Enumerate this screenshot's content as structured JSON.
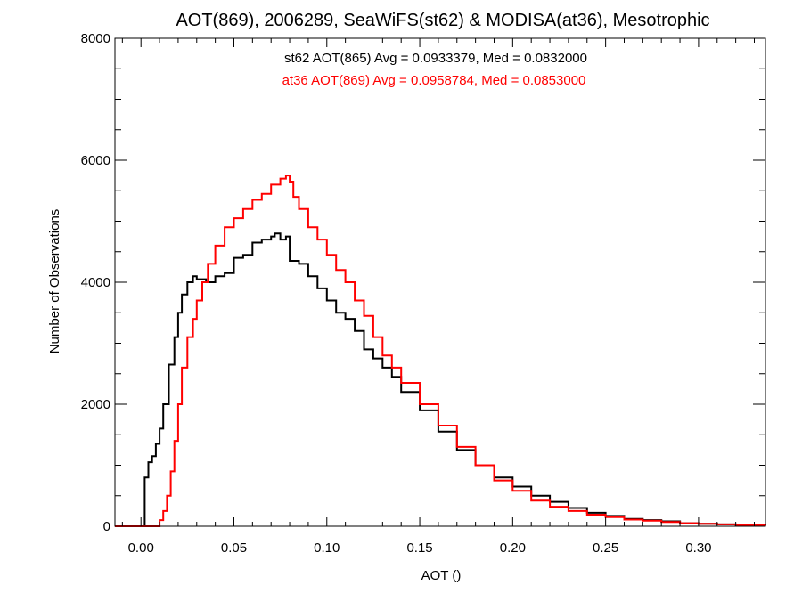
{
  "chart_data": {
    "type": "line",
    "title": "AOT(869), 2006289, SeaWiFS(st62) & MODISA(at36), Mesotrophic",
    "xlabel": "AOT ()",
    "ylabel": "Number of Observations",
    "xlim": [
      -0.014,
      0.336
    ],
    "ylim": [
      0,
      8000
    ],
    "x_ticks": [
      0.0,
      0.05,
      0.1,
      0.15,
      0.2,
      0.25,
      0.3
    ],
    "x_tick_labels": [
      "0.00",
      "0.05",
      "0.10",
      "0.15",
      "0.20",
      "0.25",
      "0.30"
    ],
    "y_ticks": [
      0,
      2000,
      4000,
      6000,
      8000
    ],
    "y_tick_labels": [
      "0",
      "2000",
      "4000",
      "6000",
      "8000"
    ],
    "grid": false,
    "step": true,
    "annotations": [
      {
        "text": "st62 AOT(865) Avg = 0.0933379, Med = 0.0832000",
        "color": "#000000"
      },
      {
        "text": "at36 AOT(869) Avg = 0.0958784, Med = 0.0853000",
        "color": "#ff0000"
      }
    ],
    "series": [
      {
        "color": "#000000",
        "x": [
          -0.014,
          0.0,
          0.002,
          0.004,
          0.006,
          0.008,
          0.01,
          0.012,
          0.015,
          0.018,
          0.02,
          0.022,
          0.025,
          0.028,
          0.03,
          0.035,
          0.04,
          0.045,
          0.05,
          0.055,
          0.06,
          0.065,
          0.07,
          0.072,
          0.075,
          0.078,
          0.08,
          0.085,
          0.09,
          0.095,
          0.1,
          0.105,
          0.11,
          0.115,
          0.12,
          0.125,
          0.13,
          0.135,
          0.14,
          0.15,
          0.16,
          0.17,
          0.18,
          0.19,
          0.2,
          0.21,
          0.22,
          0.23,
          0.24,
          0.25,
          0.26,
          0.27,
          0.28,
          0.29,
          0.3,
          0.31,
          0.32,
          0.336
        ],
        "y": [
          0,
          0,
          800,
          1050,
          1150,
          1350,
          1600,
          2000,
          2650,
          3100,
          3500,
          3800,
          4000,
          4100,
          4050,
          4000,
          4100,
          4150,
          4400,
          4450,
          4650,
          4700,
          4750,
          4800,
          4700,
          4750,
          4350,
          4300,
          4100,
          3900,
          3700,
          3500,
          3400,
          3200,
          2900,
          2750,
          2600,
          2450,
          2200,
          1900,
          1550,
          1250,
          1000,
          800,
          650,
          500,
          400,
          300,
          220,
          170,
          120,
          100,
          80,
          50,
          40,
          30,
          20,
          10
        ]
      },
      {
        "color": "#ff0000",
        "x": [
          -0.014,
          0.008,
          0.01,
          0.012,
          0.014,
          0.016,
          0.018,
          0.02,
          0.022,
          0.025,
          0.028,
          0.03,
          0.033,
          0.036,
          0.04,
          0.045,
          0.05,
          0.055,
          0.06,
          0.065,
          0.07,
          0.075,
          0.078,
          0.08,
          0.082,
          0.085,
          0.09,
          0.095,
          0.1,
          0.105,
          0.11,
          0.115,
          0.12,
          0.125,
          0.13,
          0.135,
          0.14,
          0.15,
          0.16,
          0.17,
          0.18,
          0.19,
          0.2,
          0.21,
          0.22,
          0.23,
          0.24,
          0.25,
          0.26,
          0.27,
          0.28,
          0.29,
          0.3,
          0.31,
          0.32,
          0.336
        ],
        "y": [
          0,
          0,
          100,
          250,
          500,
          900,
          1400,
          2000,
          2600,
          3100,
          3400,
          3700,
          4000,
          4300,
          4600,
          4900,
          5050,
          5200,
          5350,
          5450,
          5600,
          5700,
          5750,
          5650,
          5400,
          5200,
          4900,
          4700,
          4450,
          4200,
          4000,
          3700,
          3450,
          3100,
          2800,
          2600,
          2350,
          2000,
          1650,
          1300,
          1000,
          750,
          580,
          420,
          320,
          250,
          190,
          150,
          110,
          90,
          70,
          50,
          40,
          30,
          20,
          10
        ]
      }
    ]
  }
}
